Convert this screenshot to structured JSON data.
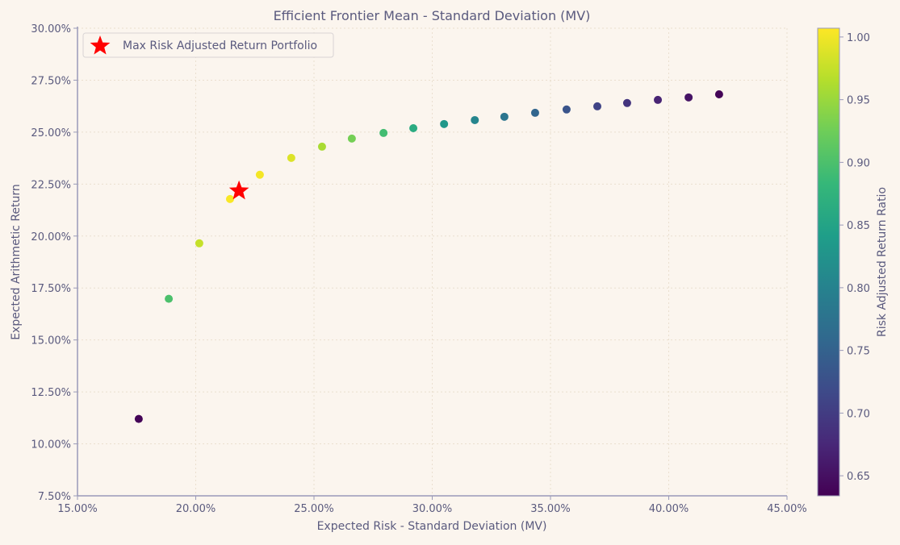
{
  "chart_data": {
    "type": "scatter",
    "title": "Efficient Frontier Mean - Standard Deviation (MV)",
    "xlabel": "Expected Risk - Standard Deviation (MV)",
    "ylabel": "Expected Arithmetic Return",
    "xlim": [
      15,
      45
    ],
    "ylim": [
      7.5,
      30
    ],
    "x_ticks": [
      "15.00%",
      "20.00%",
      "25.00%",
      "30.00%",
      "35.00%",
      "40.00%",
      "45.00%"
    ],
    "y_ticks": [
      "7.50%",
      "10.00%",
      "12.50%",
      "15.00%",
      "17.50%",
      "20.00%",
      "22.50%",
      "25.00%",
      "27.50%",
      "30.00%"
    ],
    "grid": true,
    "colormap": "viridis",
    "colorbar": {
      "label": "Risk Adjusted Return Ratio",
      "range": [
        0.634,
        1.007
      ],
      "ticks": [
        "0.65",
        "0.70",
        "0.75",
        "0.80",
        "0.85",
        "0.90",
        "0.95",
        "1.00"
      ]
    },
    "points": [
      {
        "x": 17.59,
        "y": 11.2,
        "c": 0.637
      },
      {
        "x": 18.86,
        "y": 16.98,
        "c": 0.9
      },
      {
        "x": 20.15,
        "y": 19.65,
        "c": 0.975
      },
      {
        "x": 21.45,
        "y": 21.78,
        "c": 1.005
      },
      {
        "x": 22.71,
        "y": 22.95,
        "c": 1.002
      },
      {
        "x": 24.04,
        "y": 23.76,
        "c": 0.988
      },
      {
        "x": 25.34,
        "y": 24.3,
        "c": 0.959
      },
      {
        "x": 26.6,
        "y": 24.69,
        "c": 0.928
      },
      {
        "x": 27.94,
        "y": 24.96,
        "c": 0.893
      },
      {
        "x": 29.2,
        "y": 25.19,
        "c": 0.863
      },
      {
        "x": 30.5,
        "y": 25.39,
        "c": 0.832
      },
      {
        "x": 31.8,
        "y": 25.58,
        "c": 0.804
      },
      {
        "x": 33.05,
        "y": 25.74,
        "c": 0.779
      },
      {
        "x": 34.35,
        "y": 25.93,
        "c": 0.755
      },
      {
        "x": 35.68,
        "y": 26.09,
        "c": 0.731
      },
      {
        "x": 36.98,
        "y": 26.24,
        "c": 0.71
      },
      {
        "x": 38.24,
        "y": 26.4,
        "c": 0.69
      },
      {
        "x": 39.54,
        "y": 26.55,
        "c": 0.671
      },
      {
        "x": 40.84,
        "y": 26.67,
        "c": 0.653
      },
      {
        "x": 42.13,
        "y": 26.82,
        "c": 0.637
      }
    ],
    "highlight": {
      "label": "Max Risk Adjusted Return Portfolio",
      "x": 21.83,
      "y": 22.17,
      "color": "#ff0000",
      "marker": "star"
    },
    "legend": {
      "placement": "top-left",
      "entries": [
        "Max Risk Adjusted Return Portfolio"
      ]
    }
  }
}
